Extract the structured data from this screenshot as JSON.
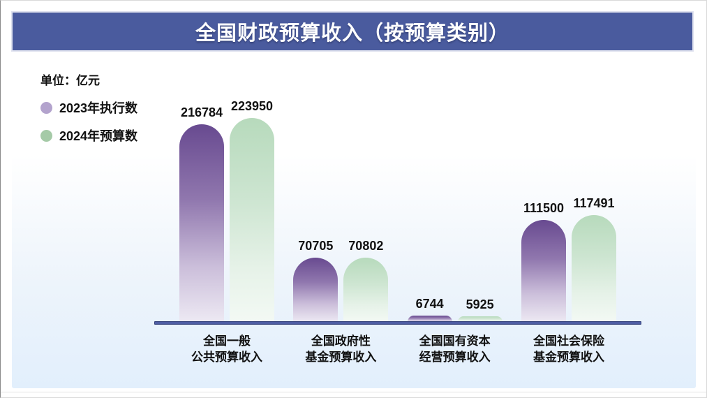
{
  "header": {
    "title": "全国财政预算收入（按预算类别）"
  },
  "colors": {
    "header_bg": "#4a5b9e",
    "title_text": "#ffffff",
    "label_text": "#111111",
    "card_top": "#ffffff",
    "card_bottom": "#e2effc",
    "axis_line": "#4d5ca3",
    "axis_border": "#36437c",
    "purple_top": "#684a90",
    "purple_mid": "#9077ae",
    "purple_low": "#cbbeda",
    "purple_bottom": "#ede9f3",
    "green_top": "#b7dabc",
    "green_mid": "#cde5d1",
    "green_low": "#e6f2e8",
    "green_bottom": "#f3f9f4",
    "legend_purple": "#b3a3cd",
    "legend_green": "#a5caa7"
  },
  "chart_data": {
    "type": "bar",
    "title": "全国财政预算收入（按预算类别）",
    "unit_label": "单位：亿元",
    "categories": [
      {
        "line1": "全国一般",
        "line2": "公共预算收入"
      },
      {
        "line1": "全国政府性",
        "line2": "基金预算收入"
      },
      {
        "line1": "全国国有资本",
        "line2": "经营预算收入"
      },
      {
        "line1": "全国社会保险",
        "line2": "基金预算收入"
      }
    ],
    "series": [
      {
        "name": "2023年执行数",
        "swatch_color": "#b3a3cd",
        "bar_style": "purple",
        "values": [
          216784,
          70705,
          6744,
          111500
        ]
      },
      {
        "name": "2024年预算数",
        "swatch_color": "#a5caa7",
        "bar_style": "green",
        "values": [
          223950,
          70802,
          5925,
          117491
        ]
      }
    ],
    "ylim": [
      0,
      230000
    ],
    "grid": false,
    "legend_position": "top-left",
    "value_labels": "above-bars"
  }
}
